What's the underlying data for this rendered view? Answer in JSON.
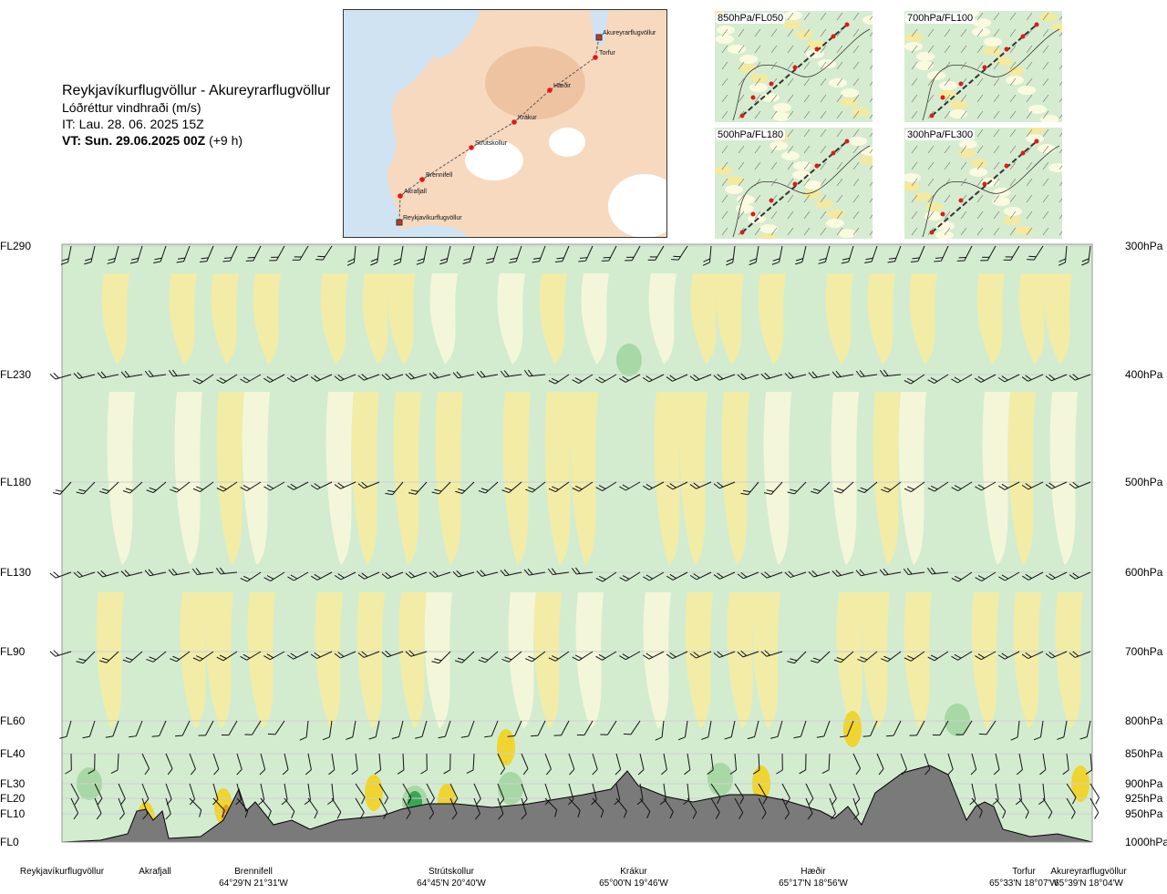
{
  "header": {
    "route": "Reykjavíkurflugvöllur - Akureyrarflugvöllur",
    "variable": "Lóðréttur vindhraði (m/s)",
    "it_label": "IT: Lau. 28. 06. 2025 15Z",
    "vt_bold": "VT: Sun. 29.06.2025 00Z",
    "vt_suffix": "(+9 h)"
  },
  "route_map": {
    "points": [
      {
        "name": "Akureyrarflugvöllur"
      },
      {
        "name": "Torfur"
      },
      {
        "name": "Hæðir"
      },
      {
        "name": "Krákur"
      },
      {
        "name": "Strútskollur"
      },
      {
        "name": "Brennifell"
      },
      {
        "name": "Akrafjall"
      },
      {
        "name": "Reykjavíkurflugvöllur"
      }
    ]
  },
  "minimaps": [
    {
      "label": "850hPa/FL050"
    },
    {
      "label": "700hPa/FL100"
    },
    {
      "label": "500hPa/FL180"
    },
    {
      "label": "300hPa/FL300"
    }
  ],
  "chart_data": {
    "type": "heatmap",
    "title": "Reykjavíkurflugvöllur - Akureyrarflugvöllur",
    "variable": "Lóðréttur vindhraði (m/s)",
    "levels": [
      {
        "fl": "FL290",
        "hpa": "300hPa"
      },
      {
        "fl": "FL230",
        "hpa": "400hPa"
      },
      {
        "fl": "FL180",
        "hpa": "500hPa"
      },
      {
        "fl": "FL130",
        "hpa": "600hPa"
      },
      {
        "fl": "FL90",
        "hpa": "700hPa"
      },
      {
        "fl": "FL60",
        "hpa": "800hPa"
      },
      {
        "fl": "FL40",
        "hpa": "850hPa"
      },
      {
        "fl": "FL30",
        "hpa": "900hPa"
      },
      {
        "fl": "FL20",
        "hpa": "925hPa"
      },
      {
        "fl": "FL10",
        "hpa": "950hPa"
      },
      {
        "fl": "FL0",
        "hpa": "1000hPa"
      }
    ],
    "locations": [
      {
        "name": "Reykjavíkurflugvöllur",
        "coord": ""
      },
      {
        "name": "Akrafjall",
        "coord": ""
      },
      {
        "name": "Brennifell",
        "coord": "64°29'N 21°31'W"
      },
      {
        "name": "Strútskollur",
        "coord": "64°45'N 20°40'W"
      },
      {
        "name": "Krákur",
        "coord": "65°00'N 19°46'W"
      },
      {
        "name": "Hæðir",
        "coord": "65°17'N 18°56'W"
      },
      {
        "name": "Torfur",
        "coord": "65°33'N 18°07'W"
      },
      {
        "name": "Akureyrarflugvöllur",
        "coord": "65°39'N 18°04'W"
      }
    ],
    "colors": {
      "strong_down": "#3aa655",
      "down": "#a7d8a5",
      "weak_down": "#d3ecd0",
      "neutral": "#f7f7d9",
      "weak_up": "#f5eca2",
      "up": "#f0d430",
      "strong_up": "#e0a020",
      "terrain": "#7a7a7a"
    }
  }
}
